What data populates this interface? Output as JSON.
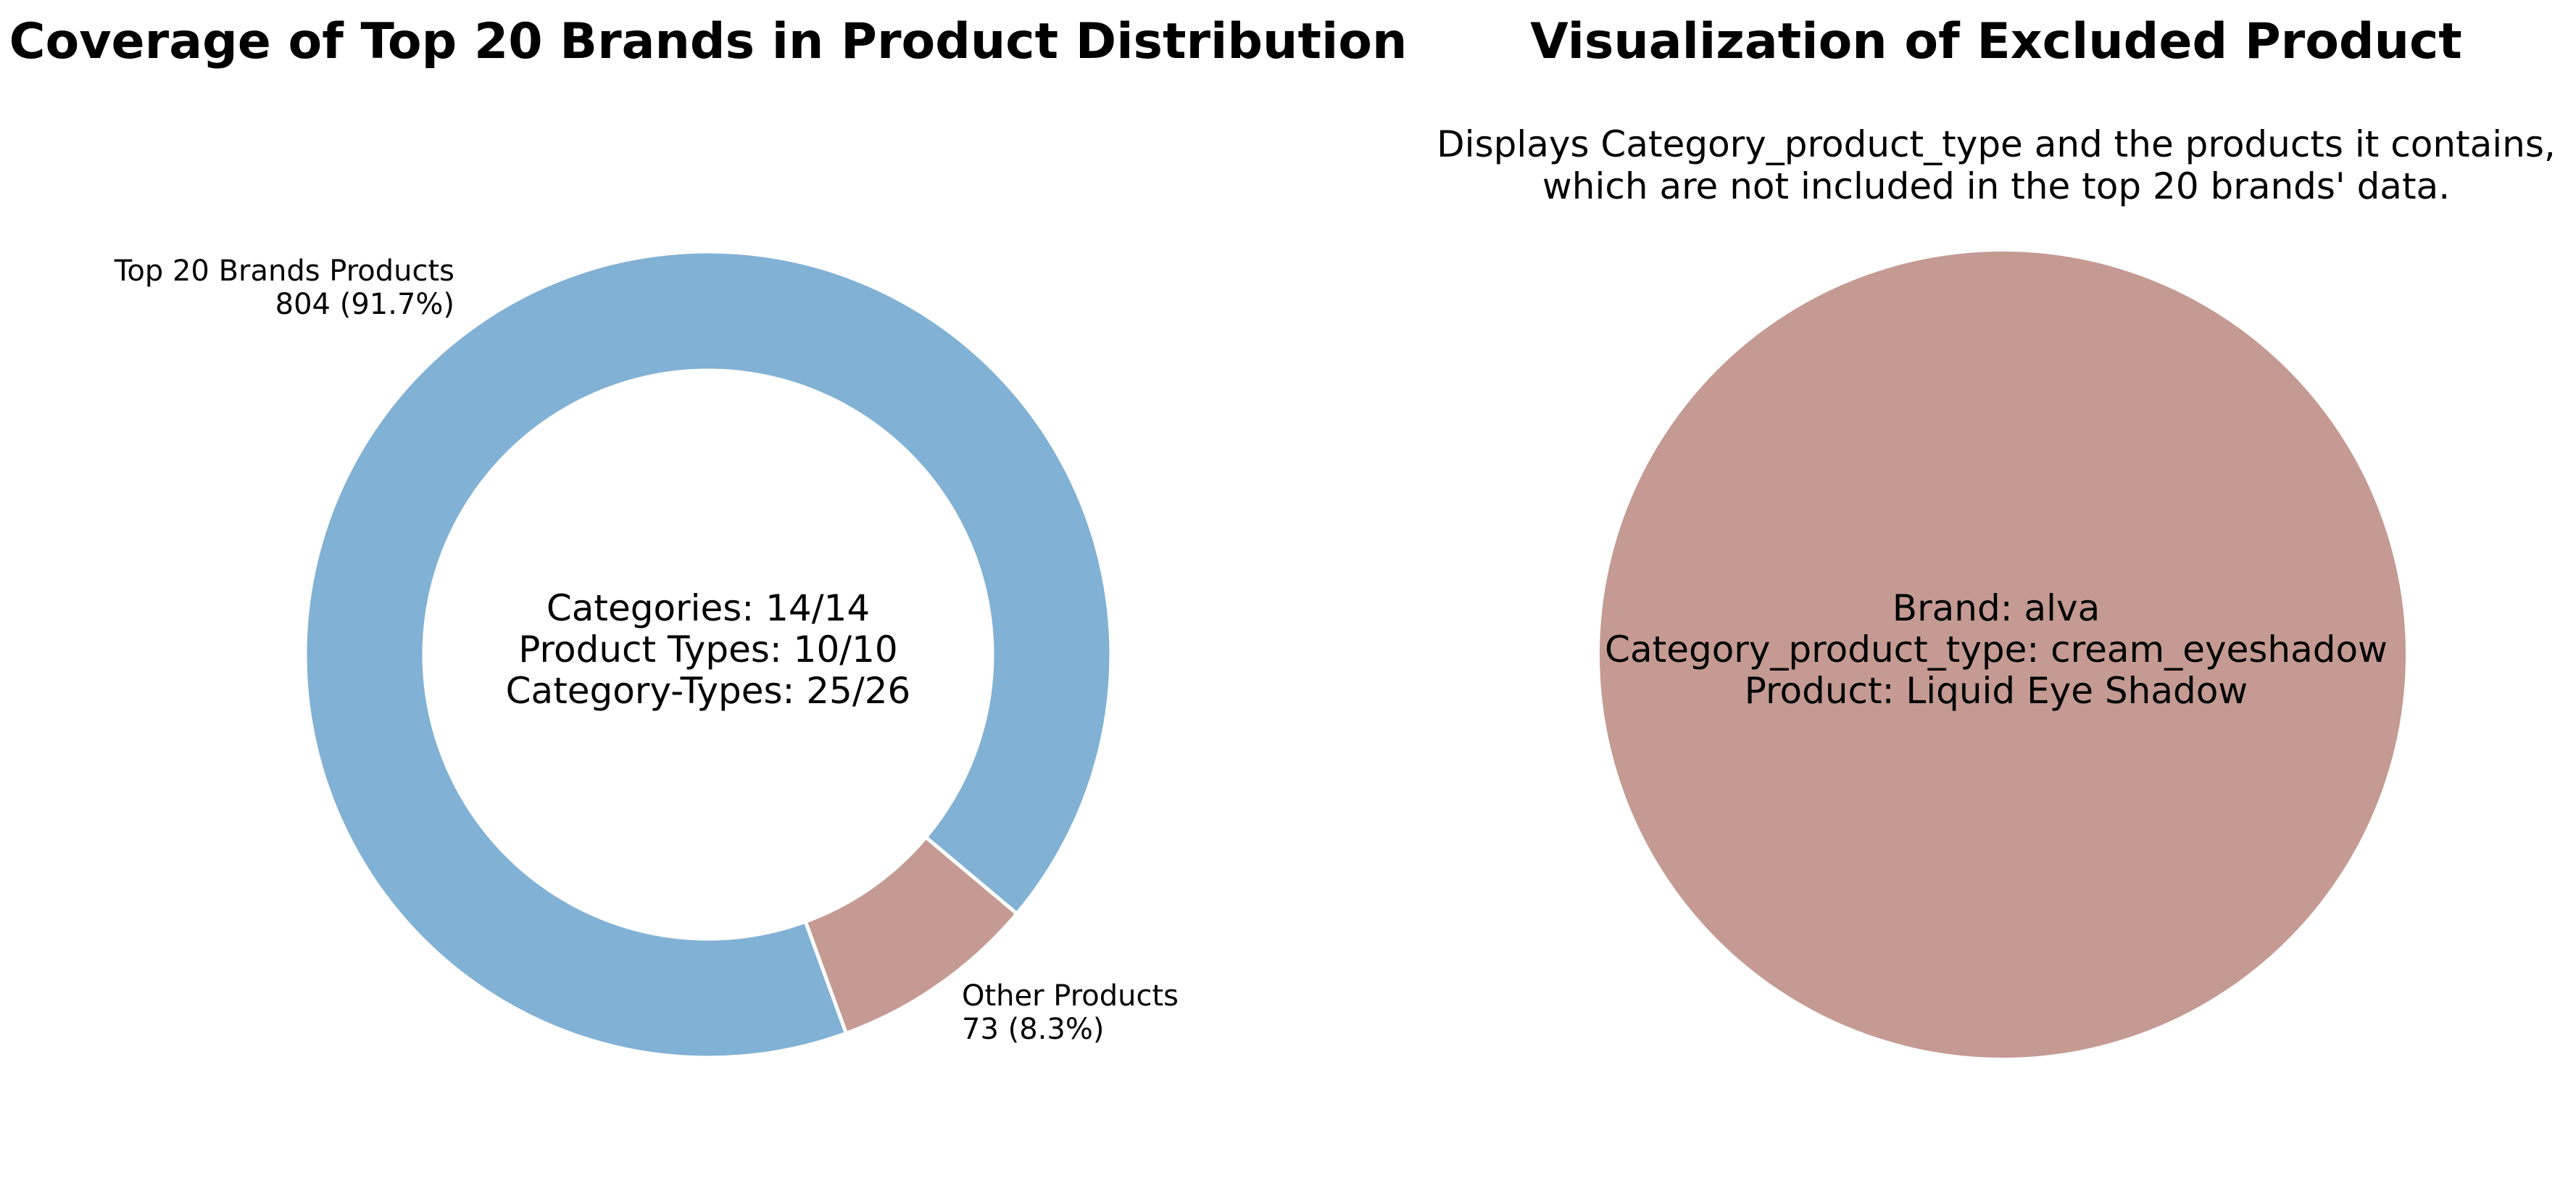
{
  "chart_data": [
    {
      "type": "pie",
      "variant": "donut",
      "title": "Coverage of Top 20 Brands in Product Distribution",
      "slices": [
        {
          "label": "Top 20 Brands Products",
          "value": 804,
          "value_label": "804 (91.7%)",
          "color": "#81b1d4"
        },
        {
          "label": "Other Products",
          "value": 73,
          "value_label": "73 (8.3%)",
          "color": "#c49a93"
        }
      ],
      "center_text": [
        "Categories: 14/14",
        "Product Types: 10/10",
        "Category-Types: 25/26"
      ]
    },
    {
      "type": "pie",
      "title": "Visualization of Excluded Product",
      "subtitle": [
        "Displays Category_product_type and the products it contains,",
        "which are not included in the top 20 brands' data."
      ],
      "slices": [
        {
          "label": "",
          "value": 1,
          "color": "#c49a93"
        }
      ],
      "center_text": [
        "Brand: alva",
        "Category_product_type: cream_eyeshadow",
        "Product: Liquid Eye Shadow"
      ]
    }
  ]
}
